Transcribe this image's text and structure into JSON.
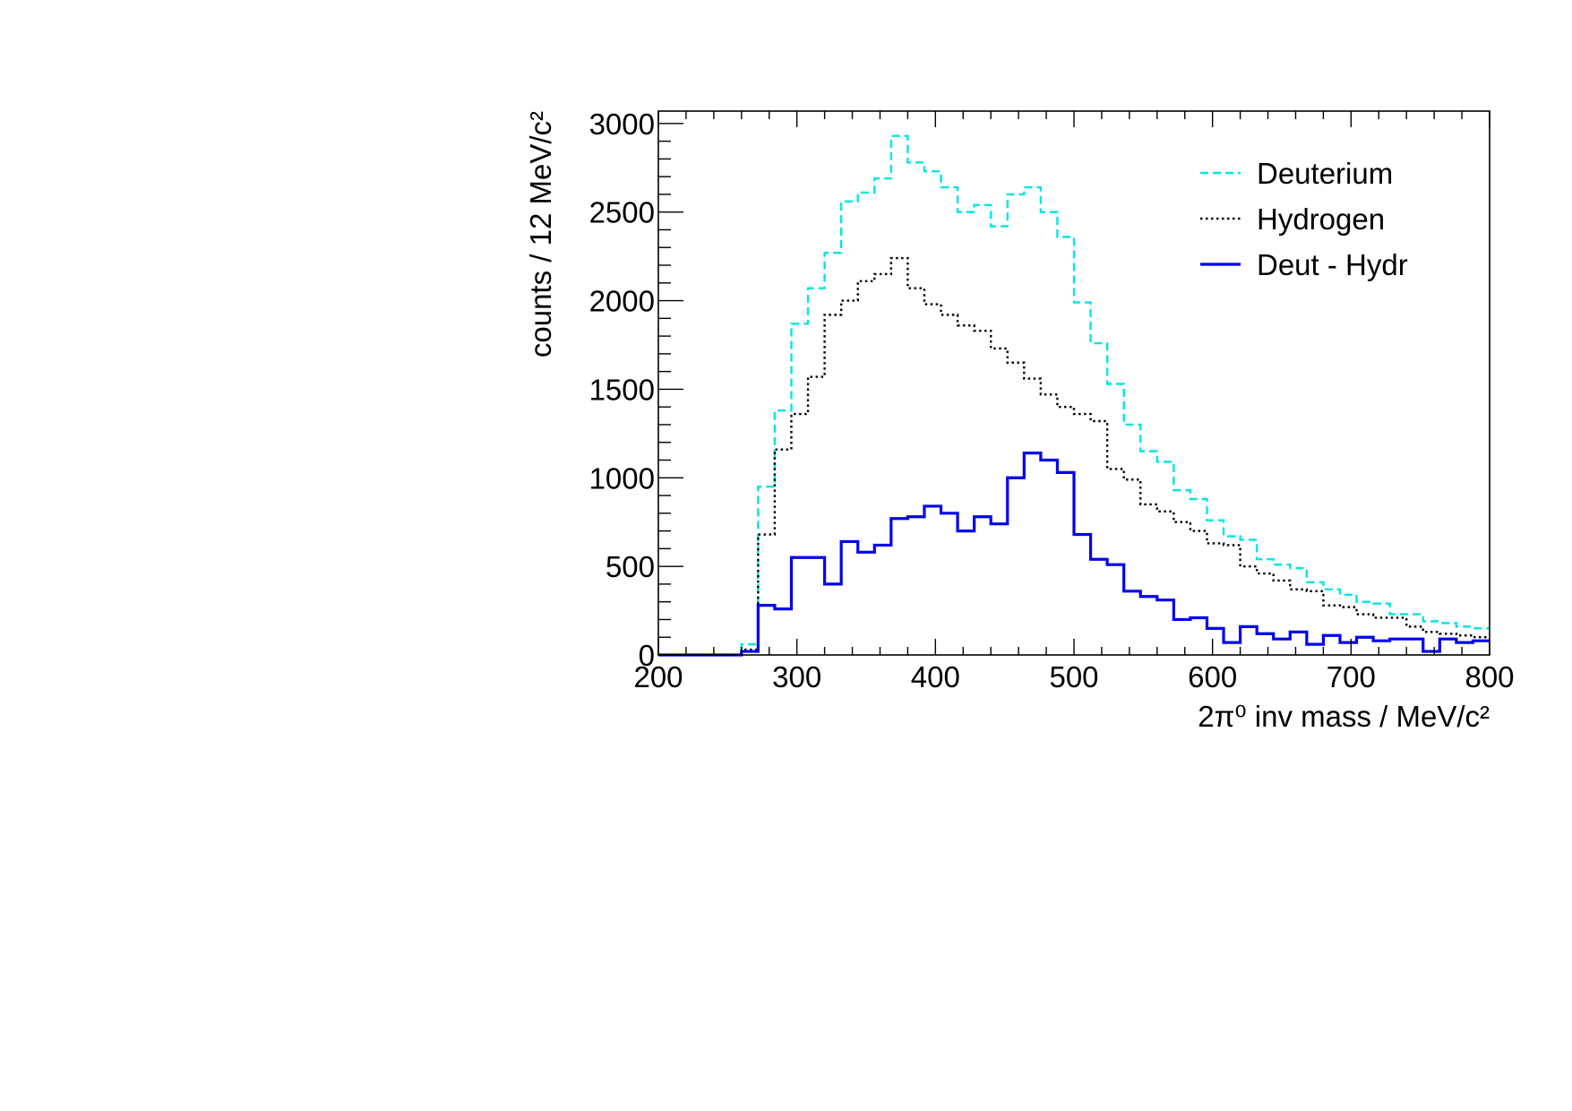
{
  "chart_data": {
    "type": "line",
    "step": true,
    "xlabel": "2π⁰ inv mass / MeV/c²",
    "ylabel": "counts / 12 MeV/c²",
    "xlim": [
      200,
      800
    ],
    "ylim": [
      0,
      3070
    ],
    "xticks": [
      200,
      300,
      400,
      500,
      600,
      700,
      800
    ],
    "yticks": [
      0,
      500,
      1000,
      1500,
      2000,
      2500,
      3000
    ],
    "bin_edges": [
      200,
      212,
      224,
      236,
      248,
      260,
      272,
      284,
      296,
      308,
      320,
      332,
      344,
      356,
      368,
      380,
      392,
      404,
      416,
      428,
      440,
      452,
      464,
      476,
      488,
      500,
      512,
      524,
      536,
      548,
      560,
      572,
      584,
      596,
      608,
      620,
      632,
      644,
      656,
      668,
      680,
      692,
      704,
      716,
      728,
      740,
      752,
      764,
      776,
      788,
      800
    ],
    "legend_position": "top-right",
    "series": [
      {
        "name": "Deuterium",
        "color": "#00e5e5",
        "style": "dashed",
        "values": [
          0,
          0,
          0,
          0,
          0,
          60,
          950,
          1380,
          1870,
          2070,
          2270,
          2560,
          2610,
          2690,
          2930,
          2780,
          2730,
          2640,
          2500,
          2540,
          2420,
          2600,
          2640,
          2500,
          2360,
          1990,
          1760,
          1530,
          1300,
          1150,
          1090,
          930,
          880,
          760,
          670,
          650,
          540,
          510,
          490,
          410,
          370,
          340,
          300,
          290,
          230,
          230,
          190,
          180,
          160,
          150
        ]
      },
      {
        "name": "Hydrogen",
        "color": "#000000",
        "style": "dotted",
        "values": [
          0,
          0,
          0,
          0,
          0,
          30,
          680,
          1160,
          1360,
          1570,
          1920,
          2000,
          2110,
          2150,
          2240,
          2070,
          1980,
          1920,
          1860,
          1830,
          1730,
          1650,
          1560,
          1470,
          1400,
          1360,
          1320,
          1050,
          990,
          850,
          810,
          750,
          700,
          630,
          620,
          500,
          460,
          420,
          370,
          360,
          280,
          270,
          230,
          210,
          210,
          160,
          130,
          120,
          110,
          100
        ]
      },
      {
        "name": "Deut - Hydr",
        "color": "#0000ee",
        "style": "solid",
        "values": [
          0,
          0,
          0,
          0,
          0,
          20,
          280,
          260,
          550,
          550,
          400,
          640,
          580,
          620,
          770,
          780,
          840,
          800,
          700,
          780,
          740,
          1000,
          1140,
          1100,
          1030,
          680,
          540,
          510,
          360,
          330,
          310,
          200,
          210,
          150,
          70,
          160,
          120,
          90,
          130,
          60,
          110,
          70,
          100,
          80,
          90,
          90,
          20,
          90,
          70,
          80
        ]
      }
    ]
  }
}
